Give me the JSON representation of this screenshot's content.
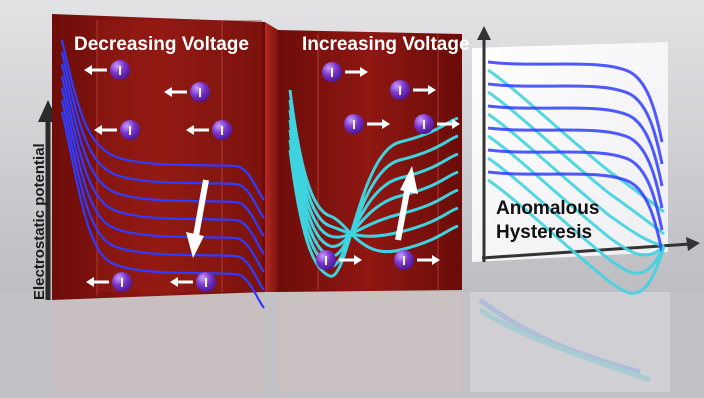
{
  "panels": {
    "decreasing": {
      "title": "Decreasing Voltage"
    },
    "increasing": {
      "title": "Increasing Voltage"
    },
    "hysteresis": {
      "title_line1": "Anomalous",
      "title_line2": "Hysteresis"
    }
  },
  "axis_label": "Electrostatic potential",
  "ion_symbol": "I",
  "colors": {
    "panel_red": "#8a1410",
    "curve_blue": "#2f3cff",
    "curve_cyan": "#3fd3e0",
    "ion_purple": "#7b34c9",
    "background": "#cfcfd2"
  }
}
